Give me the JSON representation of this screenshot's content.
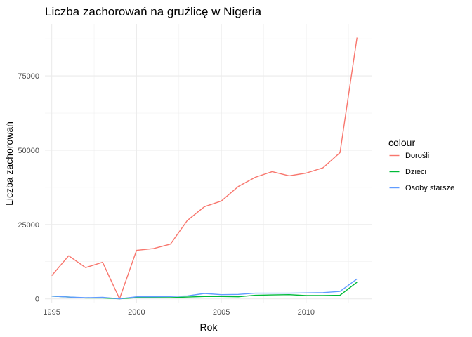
{
  "chart_data": {
    "type": "line",
    "title": "Liczba zachorowań na gruźlicę w Nigeria",
    "xlabel": "Rok",
    "ylabel": "Liczba zachorowań",
    "x": [
      1995,
      1996,
      1997,
      1998,
      1999,
      2000,
      2001,
      2002,
      2003,
      2004,
      2005,
      2006,
      2007,
      2008,
      2009,
      2010,
      2011,
      2012,
      2013
    ],
    "xlim": [
      1994.6,
      2013.9
    ],
    "ylim": [
      -1500,
      92500
    ],
    "xticks": [
      1995,
      2000,
      2005,
      2010
    ],
    "yticks": [
      0,
      25000,
      50000,
      75000
    ],
    "grid": true,
    "legend": {
      "title": "colour",
      "position": "right"
    },
    "series": [
      {
        "name": "Dorośli",
        "color": "#F8766D",
        "values": [
          7800,
          14500,
          10500,
          12300,
          0,
          16300,
          16900,
          18400,
          26400,
          31000,
          32900,
          37800,
          40900,
          42800,
          41400,
          42300,
          44100,
          49200,
          87900
        ]
      },
      {
        "name": "Dzieci",
        "color": "#00BA38",
        "values": [
          900,
          600,
          300,
          300,
          0,
          400,
          400,
          400,
          600,
          800,
          800,
          700,
          1200,
          1300,
          1400,
          1100,
          1100,
          1200,
          5600
        ]
      },
      {
        "name": "Osoby starsze",
        "color": "#619CFF",
        "values": [
          900,
          600,
          400,
          500,
          0,
          700,
          700,
          800,
          1000,
          1800,
          1400,
          1500,
          1900,
          1900,
          1900,
          2000,
          2100,
          2500,
          6700
        ]
      }
    ]
  }
}
